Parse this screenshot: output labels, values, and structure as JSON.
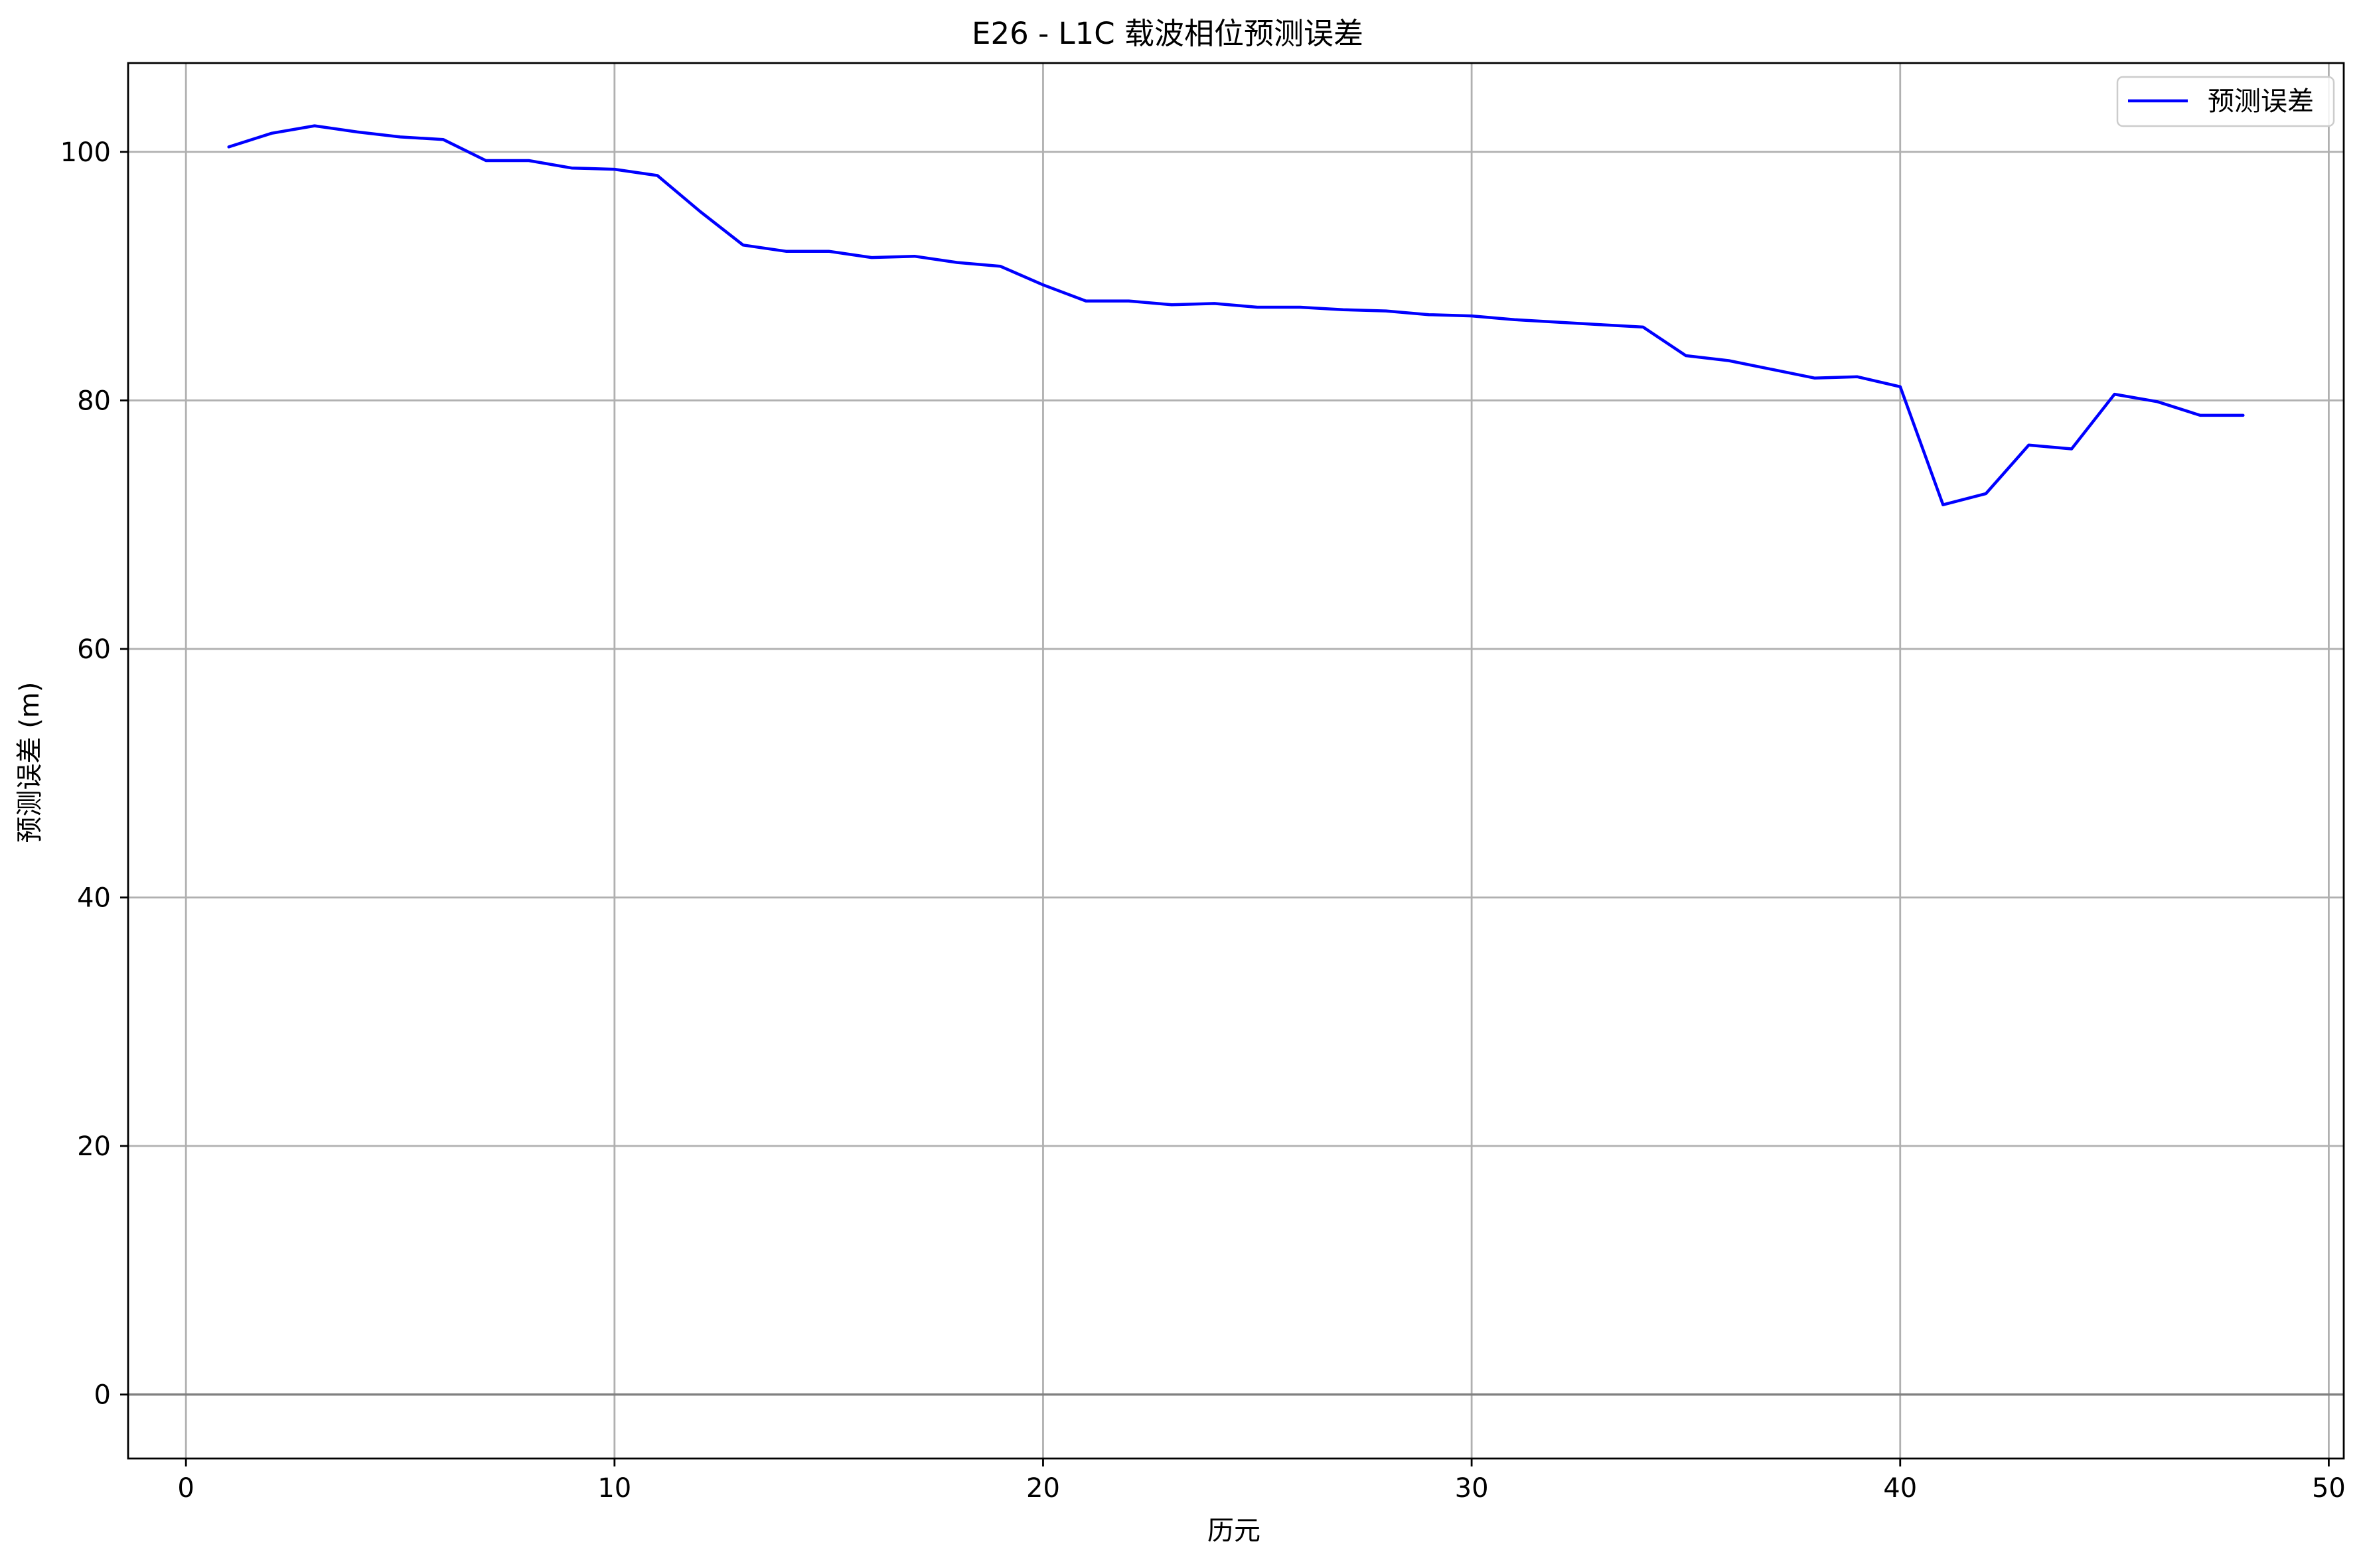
{
  "chart_data": {
    "type": "line",
    "title": "E26 - L1C 载波相位预测误差",
    "xlabel": "历元",
    "ylabel": "预测误差 (m)",
    "xlim": [
      -1.35,
      50.35
    ],
    "ylim": [
      -5.15,
      107.15
    ],
    "x_ticks": [
      0,
      10,
      20,
      30,
      40,
      50
    ],
    "y_ticks": [
      0,
      20,
      40,
      60,
      80,
      100
    ],
    "grid": true,
    "legend_position": "upper-right",
    "reference_line": {
      "y": 0,
      "color": "#808080"
    },
    "series": [
      {
        "name": "预测误差",
        "color": "#0000ff",
        "x": [
          1,
          2,
          3,
          4,
          5,
          6,
          7,
          8,
          9,
          10,
          11,
          12,
          13,
          14,
          15,
          16,
          17,
          18,
          19,
          20,
          21,
          22,
          23,
          24,
          25,
          26,
          27,
          28,
          29,
          30,
          31,
          32,
          33,
          34,
          35,
          36,
          37,
          38,
          39,
          40,
          41,
          42,
          43,
          44,
          45,
          46,
          47,
          48
        ],
        "y": [
          100.4,
          101.5,
          102.1,
          101.6,
          101.2,
          101.0,
          99.3,
          99.3,
          98.7,
          98.6,
          98.1,
          95.2,
          92.5,
          92.0,
          92.0,
          91.5,
          91.6,
          91.1,
          90.8,
          89.3,
          88.0,
          88.0,
          87.7,
          87.8,
          87.5,
          87.5,
          87.3,
          87.2,
          86.9,
          86.8,
          86.5,
          86.3,
          86.1,
          85.9,
          83.6,
          83.2,
          82.5,
          81.8,
          81.9,
          81.1,
          71.6,
          72.5,
          76.4,
          76.1,
          80.5,
          79.9,
          78.8,
          78.8
        ]
      }
    ]
  }
}
